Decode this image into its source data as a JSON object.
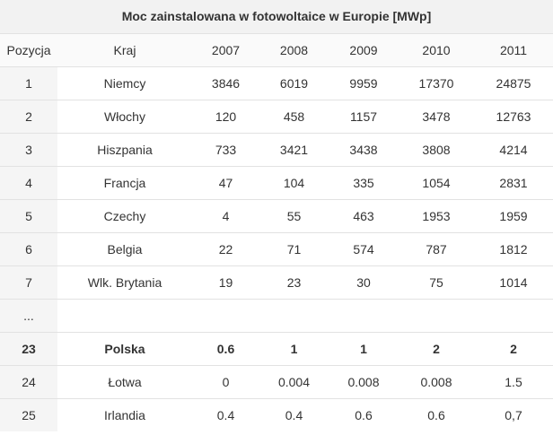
{
  "title": "Moc zainstalowana w fotowoltaice w Europie [MWp]",
  "headers": [
    "Pozycja",
    "Kraj",
    "2007",
    "2008",
    "2009",
    "2010",
    "2011"
  ],
  "rows": [
    [
      "1",
      "Niemcy",
      "3846",
      "6019",
      "9959",
      "17370",
      "24875"
    ],
    [
      "2",
      "Włochy",
      "120",
      "458",
      "1157",
      "3478",
      "12763"
    ],
    [
      "3",
      "Hiszpania",
      "733",
      "3421",
      "3438",
      "3808",
      "4214"
    ],
    [
      "4",
      "Francja",
      "47",
      "104",
      "335",
      "1054",
      "2831"
    ],
    [
      "5",
      "Czechy",
      "4",
      "55",
      "463",
      "1953",
      "1959"
    ],
    [
      "6",
      "Belgia",
      "22",
      "71",
      "574",
      "787",
      "1812"
    ],
    [
      "7",
      "Wlk. Brytania",
      "19",
      "23",
      "30",
      "75",
      "1014"
    ],
    [
      "...",
      "",
      "",
      "",
      "",
      "",
      ""
    ],
    [
      "23",
      "Polska",
      "0.6",
      "1",
      "1",
      "2",
      "2"
    ],
    [
      "24",
      "Łotwa",
      "0",
      "0.004",
      "0.008",
      "0.008",
      "1.5"
    ],
    [
      "25",
      "Irlandia",
      "0.4",
      "0.4",
      "0.6",
      "0.6",
      "0,7"
    ]
  ],
  "bold_row_index": 8
}
